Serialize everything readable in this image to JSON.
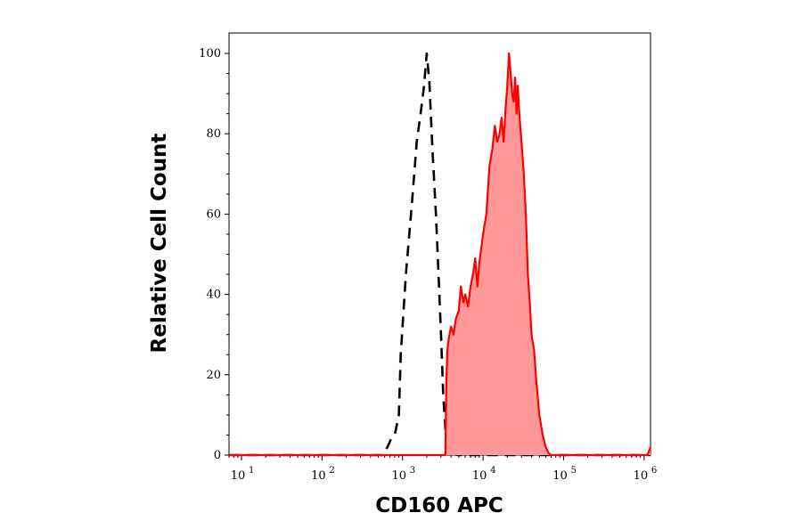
{
  "chart_data": {
    "type": "area",
    "xlabel": "CD160 APC",
    "ylabel": "Relative Cell Count",
    "x_scale": "log",
    "xlim": [
      7,
      1200000
    ],
    "ylim": [
      0,
      104
    ],
    "x_ticks": [
      {
        "value": 10,
        "base": "10",
        "exp": "1"
      },
      {
        "value": 100,
        "base": "10",
        "exp": "2"
      },
      {
        "value": 1000,
        "base": "10",
        "exp": "3"
      },
      {
        "value": 10000,
        "base": "10",
        "exp": "4"
      },
      {
        "value": 100000,
        "base": "10",
        "exp": "5"
      },
      {
        "value": 1000000,
        "base": "10",
        "exp": "6"
      }
    ],
    "y_ticks": [
      "0",
      "20",
      "40",
      "60",
      "80",
      "100"
    ],
    "colors": {
      "stained_line": "#ff0000",
      "stained_fill": "#ff9999",
      "control_line": "#000000"
    },
    "series": [
      {
        "style": "dashed-line",
        "x": [
          7,
          550,
          650,
          720,
          800,
          880,
          900,
          950,
          1100,
          1300,
          1500,
          1700,
          1850,
          2000,
          2150,
          2350,
          2600,
          2800,
          3000,
          3200,
          3500,
          4000,
          4800,
          1200000
        ],
        "y": [
          0,
          0,
          2,
          4,
          5,
          9,
          10,
          25,
          45,
          62,
          78,
          86,
          92,
          100,
          93,
          76,
          60,
          45,
          30,
          15,
          3,
          0.5,
          0,
          0
        ]
      },
      {
        "style": "filled",
        "x": [
          7,
          3400,
          3500,
          3600,
          3750,
          4000,
          4300,
          4600,
          5000,
          5300,
          5700,
          6000,
          6500,
          7000,
          7500,
          8000,
          8500,
          9000,
          10000,
          11000,
          12000,
          13000,
          14000,
          15000,
          16000,
          17000,
          18000,
          19000,
          20000,
          21000,
          22000,
          23000,
          24000,
          25000,
          26000,
          27000,
          28000,
          30000,
          32000,
          34000,
          36000,
          38000,
          40000,
          43000,
          46000,
          50000,
          55000,
          60000,
          65000,
          70000,
          80000,
          1100000,
          1200000
        ],
        "y": [
          0,
          0,
          18,
          26,
          29,
          32,
          30,
          34,
          36,
          42,
          38,
          40,
          37,
          42,
          45,
          49,
          42,
          48,
          55,
          60,
          72,
          76,
          82,
          78,
          80,
          84,
          78,
          86,
          92,
          100,
          95,
          90,
          88,
          94,
          85,
          92,
          86,
          78,
          70,
          60,
          45,
          38,
          30,
          26,
          18,
          10,
          5,
          2,
          0.5,
          0,
          0,
          0,
          2
        ]
      }
    ]
  }
}
